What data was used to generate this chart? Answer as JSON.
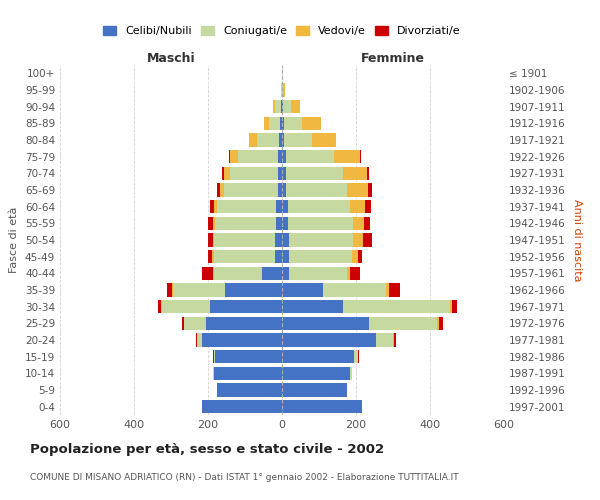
{
  "age_groups": [
    "0-4",
    "5-9",
    "10-14",
    "15-19",
    "20-24",
    "25-29",
    "30-34",
    "35-39",
    "40-44",
    "45-49",
    "50-54",
    "55-59",
    "60-64",
    "65-69",
    "70-74",
    "75-79",
    "80-84",
    "85-89",
    "90-94",
    "95-99",
    "100+"
  ],
  "birth_years": [
    "1997-2001",
    "1992-1996",
    "1987-1991",
    "1982-1986",
    "1977-1981",
    "1972-1976",
    "1967-1971",
    "1962-1966",
    "1957-1961",
    "1952-1956",
    "1947-1951",
    "1942-1946",
    "1937-1941",
    "1932-1936",
    "1927-1931",
    "1922-1926",
    "1917-1921",
    "1912-1916",
    "1907-1911",
    "1902-1906",
    "≤ 1901"
  ],
  "maschi_celibe": [
    215,
    175,
    185,
    180,
    215,
    205,
    195,
    155,
    55,
    20,
    18,
    17,
    15,
    12,
    10,
    10,
    8,
    5,
    3,
    0,
    0
  ],
  "maschi_coniugato": [
    0,
    1,
    2,
    5,
    15,
    60,
    130,
    140,
    130,
    165,
    165,
    165,
    160,
    145,
    130,
    110,
    60,
    30,
    15,
    2,
    0
  ],
  "maschi_vedovo": [
    0,
    0,
    0,
    0,
    1,
    1,
    1,
    2,
    2,
    3,
    4,
    5,
    8,
    10,
    18,
    20,
    20,
    15,
    5,
    0,
    0
  ],
  "maschi_divorziato": [
    0,
    0,
    0,
    1,
    2,
    5,
    8,
    15,
    30,
    12,
    14,
    12,
    12,
    10,
    5,
    2,
    0,
    0,
    0,
    0,
    0
  ],
  "femmine_nubile": [
    215,
    175,
    185,
    195,
    255,
    235,
    165,
    110,
    20,
    20,
    18,
    17,
    15,
    12,
    10,
    10,
    6,
    5,
    3,
    0,
    0
  ],
  "femmine_coniugata": [
    0,
    2,
    5,
    10,
    45,
    185,
    290,
    170,
    155,
    170,
    175,
    175,
    170,
    165,
    155,
    130,
    75,
    50,
    20,
    2,
    0
  ],
  "femmine_vedova": [
    0,
    0,
    0,
    1,
    2,
    3,
    5,
    8,
    10,
    15,
    25,
    30,
    40,
    55,
    65,
    70,
    65,
    50,
    25,
    5,
    0
  ],
  "femmine_divorziata": [
    0,
    0,
    0,
    2,
    5,
    12,
    12,
    30,
    25,
    12,
    25,
    15,
    15,
    10,
    5,
    3,
    0,
    0,
    0,
    0,
    0
  ],
  "colors": {
    "celibe": "#4472c4",
    "coniugato": "#c5d9a0",
    "vedovo": "#f0b840",
    "divorziato": "#cc0000"
  },
  "title": "Popolazione per età, sesso e stato civile - 2002",
  "subtitle": "COMUNE DI MISANO ADRIATICO (RN) - Dati ISTAT 1° gennaio 2002 - Elaborazione TUTTITALIA.IT",
  "ylabel_left": "Fasce di età",
  "ylabel_right": "Anni di nascita",
  "xlabel_maschi": "Maschi",
  "xlabel_femmine": "Femmine",
  "xlim": 600,
  "bg_color": "#ffffff",
  "bar_height": 0.8,
  "grid_color": "#cccccc"
}
